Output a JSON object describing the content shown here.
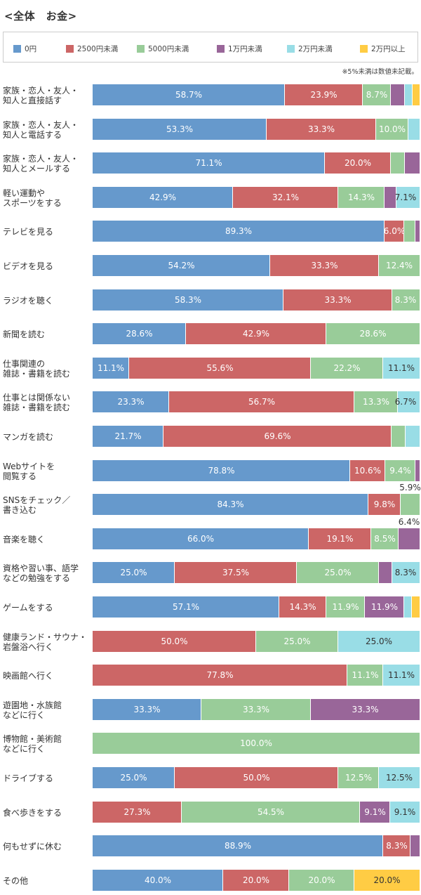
{
  "title": "<全体　お金>",
  "legend": [
    {
      "label": "0円",
      "color": "#6699cc"
    },
    {
      "label": "2500円未満",
      "color": "#cc6666"
    },
    {
      "label": "5000円未満",
      "color": "#99cc99"
    },
    {
      "label": "1万円未満",
      "color": "#996699"
    },
    {
      "label": "2万円未満",
      "color": "#99dde6"
    },
    {
      "label": "2万円以上",
      "color": "#ffcc44"
    }
  ],
  "note": "※5%未満は数値未記載。",
  "chart_data": {
    "type": "bar",
    "orientation": "horizontal-stacked-100",
    "series_names": [
      "0円",
      "2500円未満",
      "5000円未満",
      "1万円未満",
      "2万円未満",
      "2万円以上"
    ],
    "colors": [
      "#6699cc",
      "#cc6666",
      "#99cc99",
      "#996699",
      "#99dde6",
      "#ffcc44"
    ],
    "rows": [
      {
        "label": "家族・恋人・友人・\n知人と直接話す",
        "values": [
          58.7,
          23.9,
          8.7,
          4.3,
          2.2,
          2.2
        ],
        "texts": [
          "58.7%",
          "23.9%",
          "8.7%",
          "",
          "",
          ""
        ]
      },
      {
        "label": "家族・恋人・友人・\n知人と電話する",
        "values": [
          53.3,
          33.3,
          10.0,
          0,
          3.4,
          0
        ],
        "texts": [
          "53.3%",
          "33.3%",
          "10.0%",
          "",
          "",
          ""
        ]
      },
      {
        "label": "家族・恋人・友人・\n知人とメールする",
        "values": [
          71.1,
          20.0,
          4.5,
          4.4,
          0,
          0
        ],
        "texts": [
          "71.1%",
          "20.0%",
          "",
          "",
          "",
          ""
        ]
      },
      {
        "label": "軽い運動や\nスポーツをする",
        "values": [
          42.9,
          32.1,
          14.3,
          3.6,
          7.1,
          0
        ],
        "texts": [
          "42.9%",
          "32.1%",
          "14.3%",
          "",
          "7.1%",
          ""
        ]
      },
      {
        "label": "テレビを見る",
        "values": [
          89.3,
          6.0,
          3.4,
          1.3,
          0,
          0
        ],
        "texts": [
          "89.3%",
          "6.0%",
          "",
          "",
          "",
          ""
        ]
      },
      {
        "label": "ビデオを見る",
        "values": [
          54.2,
          33.3,
          12.4,
          0,
          0,
          0
        ],
        "texts": [
          "54.2%",
          "33.3%",
          "12.4%",
          "",
          "",
          ""
        ]
      },
      {
        "label": "ラジオを聴く",
        "values": [
          58.3,
          33.3,
          8.3,
          0,
          0,
          0
        ],
        "texts": [
          "58.3%",
          "33.3%",
          "8.3%",
          "",
          "",
          ""
        ]
      },
      {
        "label": "新聞を読む",
        "values": [
          28.6,
          42.9,
          28.6,
          0,
          0,
          0
        ],
        "texts": [
          "28.6%",
          "42.9%",
          "28.6%",
          "",
          "",
          ""
        ]
      },
      {
        "label": "仕事関連の\n雑誌・書籍を読む",
        "values": [
          11.1,
          55.6,
          22.2,
          0,
          11.1,
          0
        ],
        "texts": [
          "11.1%",
          "55.6%",
          "22.2%",
          "",
          "11.1%",
          ""
        ]
      },
      {
        "label": "仕事とは関係ない\n雑誌・書籍を読む",
        "values": [
          23.3,
          56.7,
          13.3,
          0,
          6.7,
          0
        ],
        "texts": [
          "23.3%",
          "56.7%",
          "13.3%",
          "",
          "6.7%",
          ""
        ]
      },
      {
        "label": "マンガを読む",
        "values": [
          21.7,
          69.6,
          4.3,
          0,
          4.3,
          0
        ],
        "texts": [
          "21.7%",
          "69.6%",
          "",
          "",
          "",
          ""
        ]
      },
      {
        "label": "Webサイトを\n閲覧する",
        "values": [
          78.8,
          10.6,
          9.4,
          1.2,
          0,
          0
        ],
        "texts": [
          "78.8%",
          "10.6%",
          "9.4%",
          "",
          "",
          ""
        ]
      },
      {
        "label": "SNSをチェック／\n書き込む",
        "values": [
          84.3,
          9.8,
          5.9,
          0,
          0,
          0
        ],
        "texts": [
          "84.3%",
          "9.8%",
          "5.9%",
          "",
          "",
          ""
        ],
        "above": [
          false,
          false,
          true,
          false,
          false,
          false
        ]
      },
      {
        "label": "音楽を聴く",
        "values": [
          66.0,
          19.1,
          8.5,
          6.4,
          0,
          0
        ],
        "texts": [
          "66.0%",
          "19.1%",
          "8.5%",
          "6.4%",
          "",
          ""
        ],
        "above": [
          false,
          false,
          false,
          true,
          false,
          false
        ]
      },
      {
        "label": "資格や習い事、語学\nなどの勉強をする",
        "values": [
          25.0,
          37.5,
          25.0,
          4.2,
          8.3,
          0
        ],
        "texts": [
          "25.0%",
          "37.5%",
          "25.0%",
          "",
          "8.3%",
          ""
        ]
      },
      {
        "label": "ゲームをする",
        "values": [
          57.1,
          14.3,
          11.9,
          11.9,
          2.4,
          2.4
        ],
        "texts": [
          "57.1%",
          "14.3%",
          "11.9%",
          "11.9%",
          "",
          ""
        ]
      },
      {
        "label": "健康ランド・サウナ・\n岩盤浴へ行く",
        "values": [
          0,
          50.0,
          25.0,
          0,
          25.0,
          0
        ],
        "texts": [
          "",
          "50.0%",
          "25.0%",
          "",
          "25.0%",
          ""
        ]
      },
      {
        "label": "映画館へ行く",
        "values": [
          0,
          77.8,
          11.1,
          0,
          11.1,
          0
        ],
        "texts": [
          "",
          "77.8%",
          "11.1%",
          "",
          "11.1%",
          ""
        ]
      },
      {
        "label": "遊園地・水族館\nなどに行く",
        "values": [
          33.3,
          0,
          33.3,
          33.3,
          0,
          0
        ],
        "texts": [
          "33.3%",
          "",
          "33.3%",
          "33.3%",
          "",
          ""
        ]
      },
      {
        "label": "博物館・美術館\nなどに行く",
        "values": [
          0,
          0,
          100.0,
          0,
          0,
          0
        ],
        "texts": [
          "",
          "",
          "100.0%",
          "",
          "",
          ""
        ]
      },
      {
        "label": "ドライブする",
        "values": [
          25.0,
          50.0,
          12.5,
          0,
          12.5,
          0
        ],
        "texts": [
          "25.0%",
          "50.0%",
          "12.5%",
          "",
          "12.5%",
          ""
        ]
      },
      {
        "label": "食べ歩きをする",
        "values": [
          0,
          27.3,
          54.5,
          9.1,
          9.1,
          0
        ],
        "texts": [
          "",
          "27.3%",
          "54.5%",
          "9.1%",
          "9.1%",
          ""
        ]
      },
      {
        "label": "何もせずに休む",
        "values": [
          88.9,
          8.3,
          0,
          2.8,
          0,
          0
        ],
        "texts": [
          "88.9%",
          "8.3%",
          "",
          "",
          "",
          ""
        ]
      },
      {
        "label": "その他",
        "values": [
          40.0,
          20.0,
          20.0,
          0,
          0,
          20.0
        ],
        "texts": [
          "40.0%",
          "20.0%",
          "20.0%",
          "",
          "",
          "20.0%"
        ]
      }
    ]
  }
}
